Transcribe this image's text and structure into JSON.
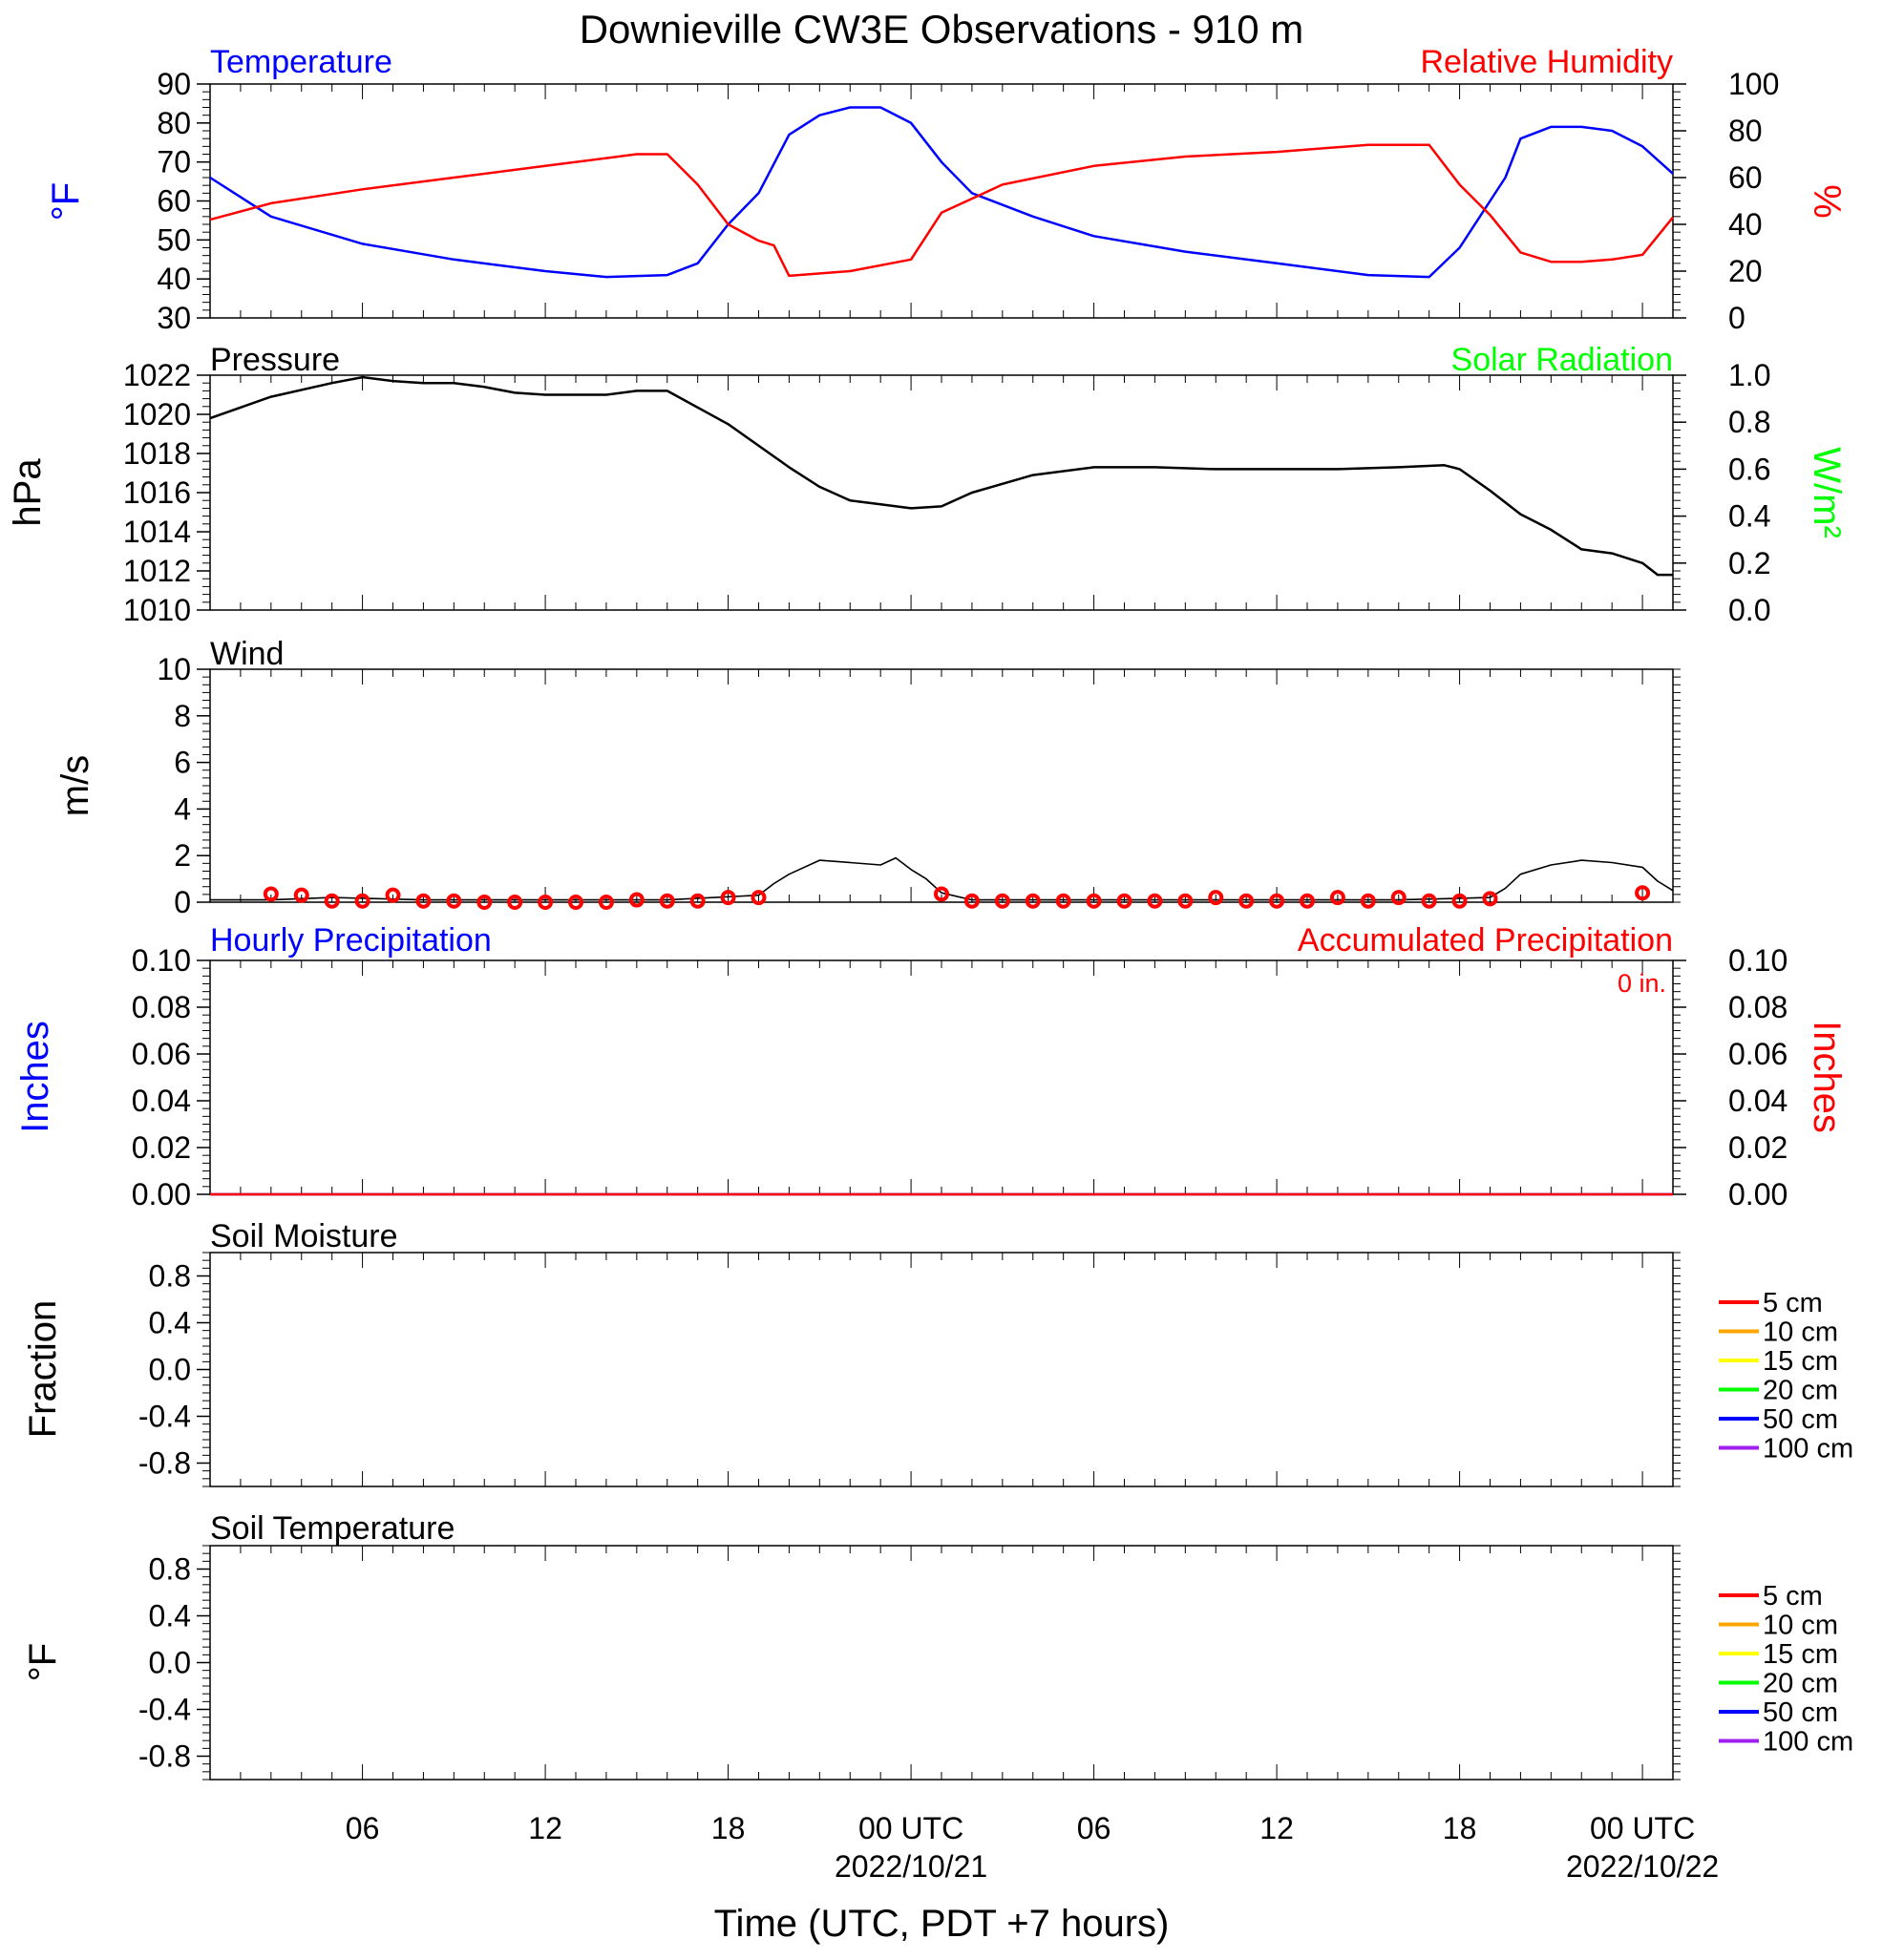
{
  "title": "Downieville CW3E Observations - 910 m",
  "xaxis": {
    "title": "Time (UTC, PDT +7 hours)",
    "ticks": [
      {
        "h": 6,
        "label": "06"
      },
      {
        "h": 12,
        "label": "12"
      },
      {
        "h": 18,
        "label": "18"
      },
      {
        "h": 24,
        "label": "00 UTC",
        "date": "2022/10/21"
      },
      {
        "h": 30,
        "label": "06"
      },
      {
        "h": 36,
        "label": "12"
      },
      {
        "h": 42,
        "label": "18"
      },
      {
        "h": 48,
        "label": "00 UTC",
        "date": "2022/10/22"
      }
    ],
    "range_hours": [
      1,
      49
    ]
  },
  "colors": {
    "temperature": "#0000ff",
    "humidity": "#ff0000",
    "pressure": "#000000",
    "solar": "#00ff00",
    "wind": "#000000",
    "gust": "#ff0000",
    "precip_hourly": "#0000ff",
    "precip_accum": "#ff0000"
  },
  "panels": {
    "temp_rh": {
      "left_title": "Temperature",
      "right_title": "Relative Humidity",
      "left_unit": "°F",
      "right_unit": "%",
      "left_ticks": [
        "90",
        "80",
        "70",
        "60",
        "50",
        "40",
        "30"
      ],
      "right_ticks": [
        "100",
        "80",
        "60",
        "40",
        "20",
        "0"
      ]
    },
    "pressure": {
      "left_title": "Pressure",
      "right_title": "Solar Radiation",
      "left_unit": "hPa",
      "right_unit": "W/m²",
      "left_ticks": [
        "1022",
        "1020",
        "1018",
        "1016",
        "1014",
        "1012",
        "1010"
      ],
      "right_ticks": [
        "1.0",
        "0.8",
        "0.6",
        "0.4",
        "0.2",
        "0.0"
      ]
    },
    "wind": {
      "left_title": "Wind",
      "left_unit": "m/s",
      "left_ticks": [
        "10",
        "8",
        "6",
        "4",
        "2",
        "0"
      ]
    },
    "precip": {
      "left_title": "Hourly Precipitation",
      "right_title": "Accumulated Precipitation",
      "total_label": "0 in.",
      "left_unit": "Inches",
      "right_unit": "Inches",
      "left_ticks": [
        "0.10",
        "0.08",
        "0.06",
        "0.04",
        "0.02",
        "0.00"
      ],
      "right_ticks": [
        "0.10",
        "0.08",
        "0.06",
        "0.04",
        "0.02",
        "0.00"
      ]
    },
    "soil_moisture": {
      "left_title": "Soil Moisture",
      "left_unit": "Fraction",
      "left_ticks": [
        "0.8",
        "0.4",
        "0.0",
        "-0.4",
        "-0.8"
      ]
    },
    "soil_temp": {
      "left_title": "Soil Temperature",
      "left_unit": "°F",
      "left_ticks": [
        "0.8",
        "0.4",
        "0.0",
        "-0.4",
        "-0.8"
      ]
    }
  },
  "legend": [
    {
      "label": "5 cm",
      "color": "#ff0000"
    },
    {
      "label": "10 cm",
      "color": "#ffa500"
    },
    {
      "label": "15 cm",
      "color": "#ffff00"
    },
    {
      "label": "20 cm",
      "color": "#00ff00"
    },
    {
      "label": "50 cm",
      "color": "#0000ff"
    },
    {
      "label": "100 cm",
      "color": "#a020f0"
    }
  ],
  "chart_data": [
    {
      "type": "line",
      "panel": "temp_rh",
      "ylim": [
        30,
        90
      ],
      "y2lim": [
        0,
        100
      ],
      "series": [
        {
          "name": "Temperature",
          "axis": "left",
          "x": [
            1,
            3,
            6,
            9,
            12,
            14,
            16,
            17,
            18,
            19,
            20,
            21,
            22,
            23,
            24,
            25,
            26,
            28,
            30,
            33,
            36,
            39,
            41,
            42,
            43,
            43.5,
            44,
            45,
            46,
            47,
            48,
            49
          ],
          "y": [
            66,
            56,
            49,
            45,
            42,
            40.5,
            41,
            44,
            54,
            62,
            77,
            82,
            84,
            84,
            80,
            70,
            62,
            56,
            51,
            47,
            44,
            41,
            40.5,
            48,
            60,
            66,
            76,
            79,
            79,
            78,
            74,
            67
          ]
        },
        {
          "name": "Relative Humidity",
          "axis": "right",
          "x": [
            1,
            3,
            6,
            9,
            12,
            15,
            16,
            17,
            18,
            19,
            19.5,
            20,
            22,
            24,
            25,
            27,
            30,
            33,
            36,
            39,
            41,
            42,
            43,
            44,
            45,
            46,
            47,
            48,
            49
          ],
          "y": [
            42,
            49,
            55,
            60,
            65,
            70,
            70,
            57,
            40,
            33,
            31,
            18,
            20,
            25,
            45,
            57,
            65,
            69,
            71,
            74,
            74,
            57,
            44,
            28,
            24,
            24,
            25,
            27,
            43
          ]
        }
      ]
    },
    {
      "type": "line",
      "panel": "pressure",
      "ylim": [
        1010,
        1022
      ],
      "series": [
        {
          "name": "Pressure",
          "axis": "left",
          "x": [
            1,
            3,
            5,
            6,
            7,
            8,
            9,
            10,
            11,
            12,
            14,
            15,
            16,
            18,
            20,
            21,
            22,
            23,
            24,
            25,
            26,
            28,
            30,
            32,
            34,
            36,
            38,
            40,
            41.5,
            42,
            43,
            44,
            45,
            46,
            47,
            48,
            48.5,
            49
          ],
          "y": [
            1019.8,
            1020.9,
            1021.6,
            1021.9,
            1021.7,
            1021.6,
            1021.6,
            1021.4,
            1021.1,
            1021.0,
            1021.0,
            1021.2,
            1021.2,
            1019.5,
            1017.3,
            1016.3,
            1015.6,
            1015.4,
            1015.2,
            1015.3,
            1016.0,
            1016.9,
            1017.3,
            1017.3,
            1017.2,
            1017.2,
            1017.2,
            1017.3,
            1017.4,
            1017.2,
            1016.1,
            1014.9,
            1014.1,
            1013.1,
            1012.9,
            1012.4,
            1011.8,
            1011.8
          ]
        }
      ]
    },
    {
      "type": "line",
      "panel": "wind",
      "ylim": [
        0,
        10
      ],
      "series": [
        {
          "name": "Wind speed",
          "x": [
            1,
            2,
            3,
            5,
            8,
            12,
            16,
            19,
            19.5,
            20,
            21,
            22,
            23,
            23.5,
            24,
            24.5,
            25,
            26,
            28,
            32,
            36,
            40,
            43,
            43.5,
            44,
            45,
            46,
            47,
            48,
            48.5,
            49
          ],
          "y": [
            0.1,
            0.1,
            0.1,
            0.2,
            0.1,
            0.1,
            0.1,
            0.3,
            0.8,
            1.2,
            1.8,
            1.7,
            1.6,
            1.9,
            1.4,
            1.0,
            0.4,
            0.1,
            0.1,
            0.1,
            0.1,
            0.1,
            0.2,
            0.6,
            1.2,
            1.6,
            1.8,
            1.7,
            1.5,
            0.9,
            0.5
          ]
        },
        {
          "name": "Hourly wind",
          "x": [
            3,
            4,
            5,
            6,
            7,
            8,
            9,
            10,
            11,
            12,
            13,
            14,
            15,
            16,
            17,
            18,
            19,
            25,
            26,
            27,
            28,
            29,
            30,
            31,
            32,
            33,
            34,
            35,
            36,
            37,
            38,
            39,
            40,
            41,
            42,
            43,
            48
          ],
          "y": [
            0.35,
            0.3,
            0.05,
            0.05,
            0.3,
            0.05,
            0.05,
            0.0,
            0.0,
            0.0,
            0.0,
            0.0,
            0.1,
            0.05,
            0.05,
            0.2,
            0.2,
            0.35,
            0.05,
            0.05,
            0.05,
            0.05,
            0.05,
            0.05,
            0.05,
            0.05,
            0.2,
            0.05,
            0.05,
            0.05,
            0.2,
            0.05,
            0.2,
            0.05,
            0.05,
            0.15,
            0.4
          ]
        }
      ]
    },
    {
      "type": "line",
      "panel": "precip",
      "ylim": [
        0,
        0.1
      ],
      "y2lim": [
        0,
        0.1
      ],
      "series": [
        {
          "name": "Hourly Precipitation",
          "axis": "left",
          "x": [
            1,
            49
          ],
          "y": [
            0,
            0
          ]
        },
        {
          "name": "Accumulated Precipitation",
          "axis": "right",
          "x": [
            1,
            49
          ],
          "y": [
            0,
            0
          ]
        }
      ]
    },
    {
      "type": "line",
      "panel": "soil_moisture",
      "ylim": [
        -1,
        1
      ],
      "series": []
    },
    {
      "type": "line",
      "panel": "soil_temp",
      "ylim": [
        -1,
        1
      ],
      "series": []
    }
  ]
}
